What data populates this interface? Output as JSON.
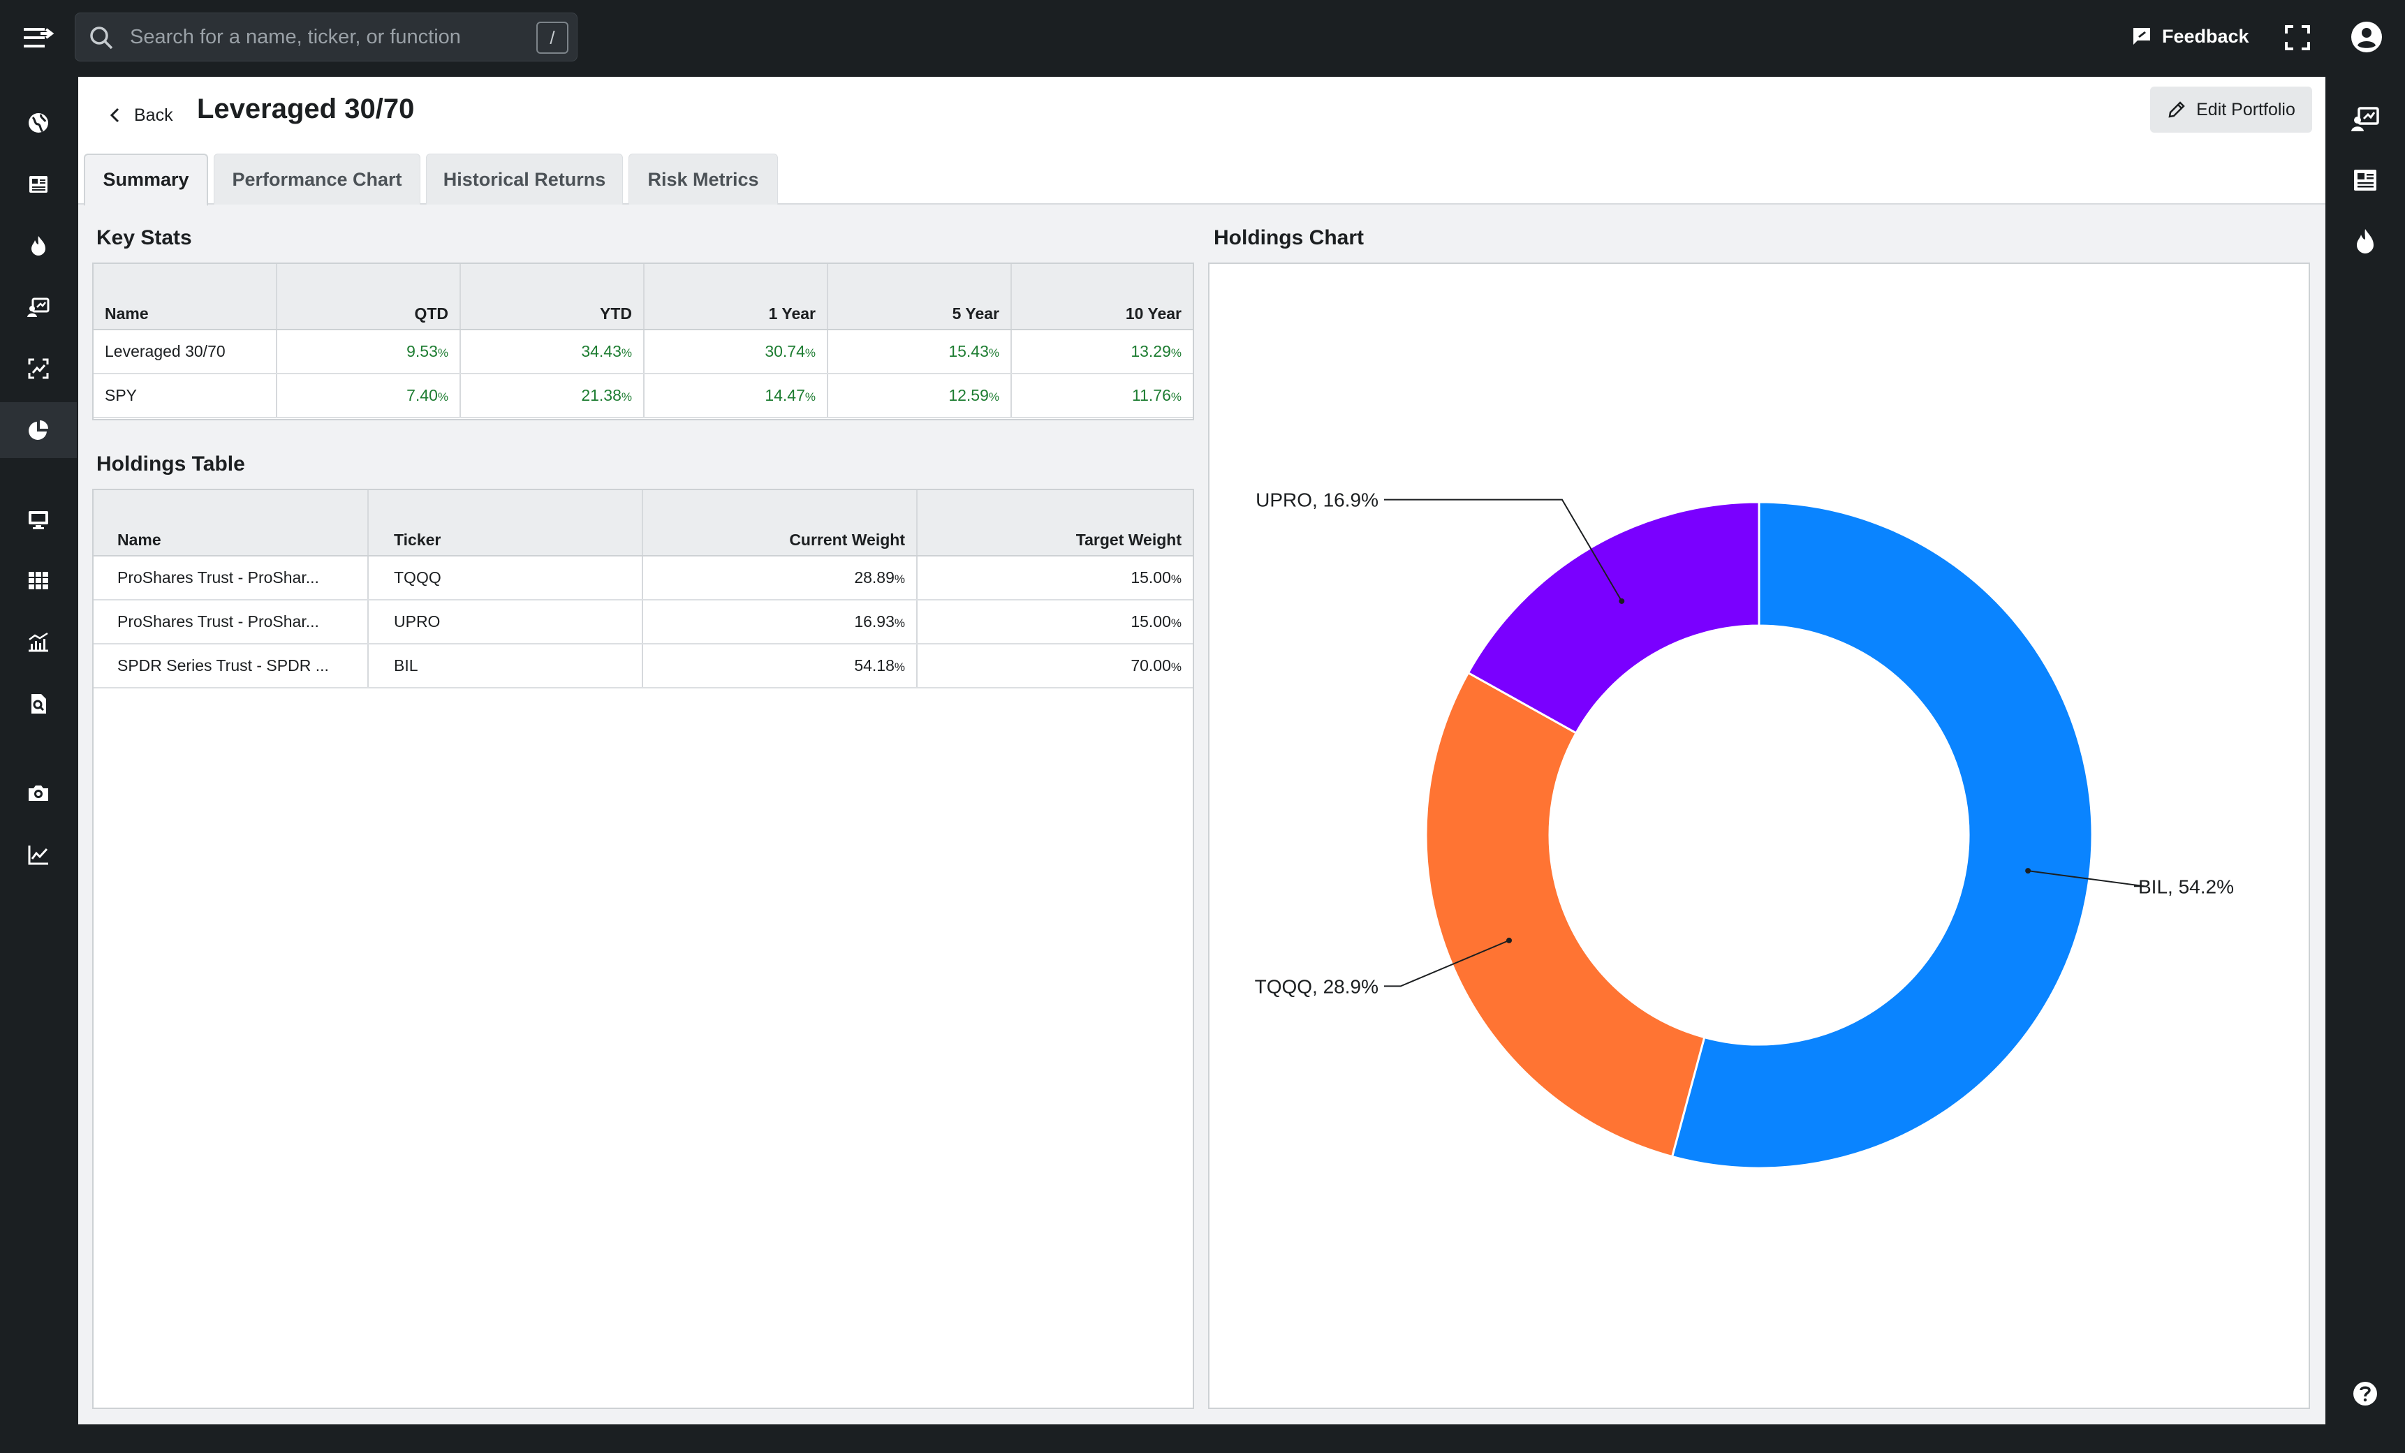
{
  "topbar": {
    "search_placeholder": "Search for a name, ticker, or function",
    "search_shortcut": "/",
    "feedback_label": "Feedback"
  },
  "page": {
    "back_label": "Back",
    "title": "Leveraged 30/70",
    "edit_label": "Edit Portfolio"
  },
  "tabs": [
    {
      "label": "Summary",
      "active": true
    },
    {
      "label": "Performance Chart",
      "active": false
    },
    {
      "label": "Historical Returns",
      "active": false
    },
    {
      "label": "Risk Metrics",
      "active": false
    }
  ],
  "key_stats": {
    "title": "Key Stats",
    "columns": [
      "Name",
      "QTD",
      "YTD",
      "1 Year",
      "5 Year",
      "10 Year"
    ],
    "rows": [
      {
        "name": "Leveraged 30/70",
        "values": [
          "9.53",
          "34.43",
          "30.74",
          "15.43",
          "13.29"
        ]
      },
      {
        "name": "SPY",
        "values": [
          "7.40",
          "21.38",
          "14.47",
          "12.59",
          "11.76"
        ]
      }
    ],
    "unit": "%"
  },
  "holdings_table": {
    "title": "Holdings Table",
    "columns": [
      "Name",
      "Ticker",
      "Current Weight",
      "Target Weight"
    ],
    "rows": [
      {
        "name": "ProShares Trust - ProShar...",
        "ticker": "TQQQ",
        "current": "28.89",
        "target": "15.00"
      },
      {
        "name": "ProShares Trust - ProShar...",
        "ticker": "UPRO",
        "current": "16.93",
        "target": "15.00"
      },
      {
        "name": "SPDR Series Trust - SPDR ...",
        "ticker": "BIL",
        "current": "54.18",
        "target": "70.00"
      }
    ],
    "unit": "%"
  },
  "holdings_chart": {
    "title": "Holdings Chart"
  },
  "chart_data": {
    "type": "pie",
    "donut": true,
    "categories": [
      "BIL",
      "TQQQ",
      "UPRO"
    ],
    "values": [
      54.2,
      28.9,
      16.9
    ],
    "labels": [
      "BIL, 54.2%",
      "TQQQ, 28.9%",
      "UPRO, 16.9%"
    ],
    "colors": [
      "#0a84ff",
      "#ff7433",
      "#7a00ff"
    ]
  },
  "icons": {
    "left_nav": [
      "globe-icon",
      "news-icon",
      "flame-icon",
      "screener-icon",
      "analysis-icon",
      "portfolio-pie-icon",
      "monitor-icon",
      "grid-icon",
      "chart-bars-icon",
      "document-search-icon",
      "camera-icon",
      "line-chart-icon"
    ],
    "right_nav": [
      "screener-icon",
      "news-icon",
      "flame-icon",
      "help-icon"
    ]
  }
}
